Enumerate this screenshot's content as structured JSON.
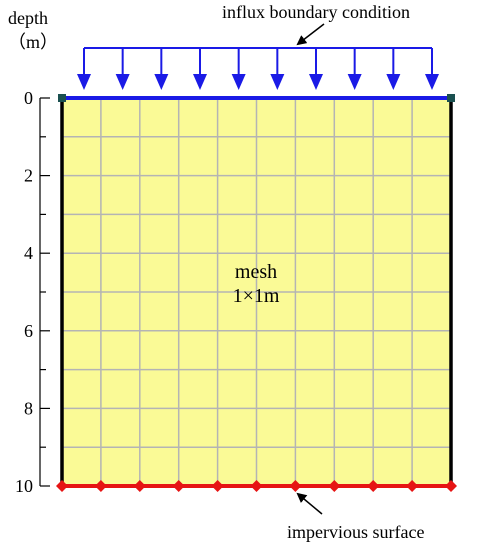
{
  "axis": {
    "label_line1": "depth",
    "label_line2": "（m）",
    "ticks": [
      "0",
      "2",
      "4",
      "6",
      "8",
      "10"
    ],
    "min": 0,
    "max": 10,
    "major_step": 2,
    "minor_step": 1
  },
  "mesh": {
    "label_line1": "mesh",
    "label_line2": "1×1m",
    "columns": 10,
    "rows": 10,
    "fill_color": "#fafa96",
    "grid_color": "#b4b4b4"
  },
  "top_boundary": {
    "label": "influx boundary condition",
    "arrow_count": 10,
    "color": "#1a1ae6"
  },
  "bottom_boundary": {
    "label": "impervious surface",
    "node_count": 11,
    "color": "#e61414"
  }
}
